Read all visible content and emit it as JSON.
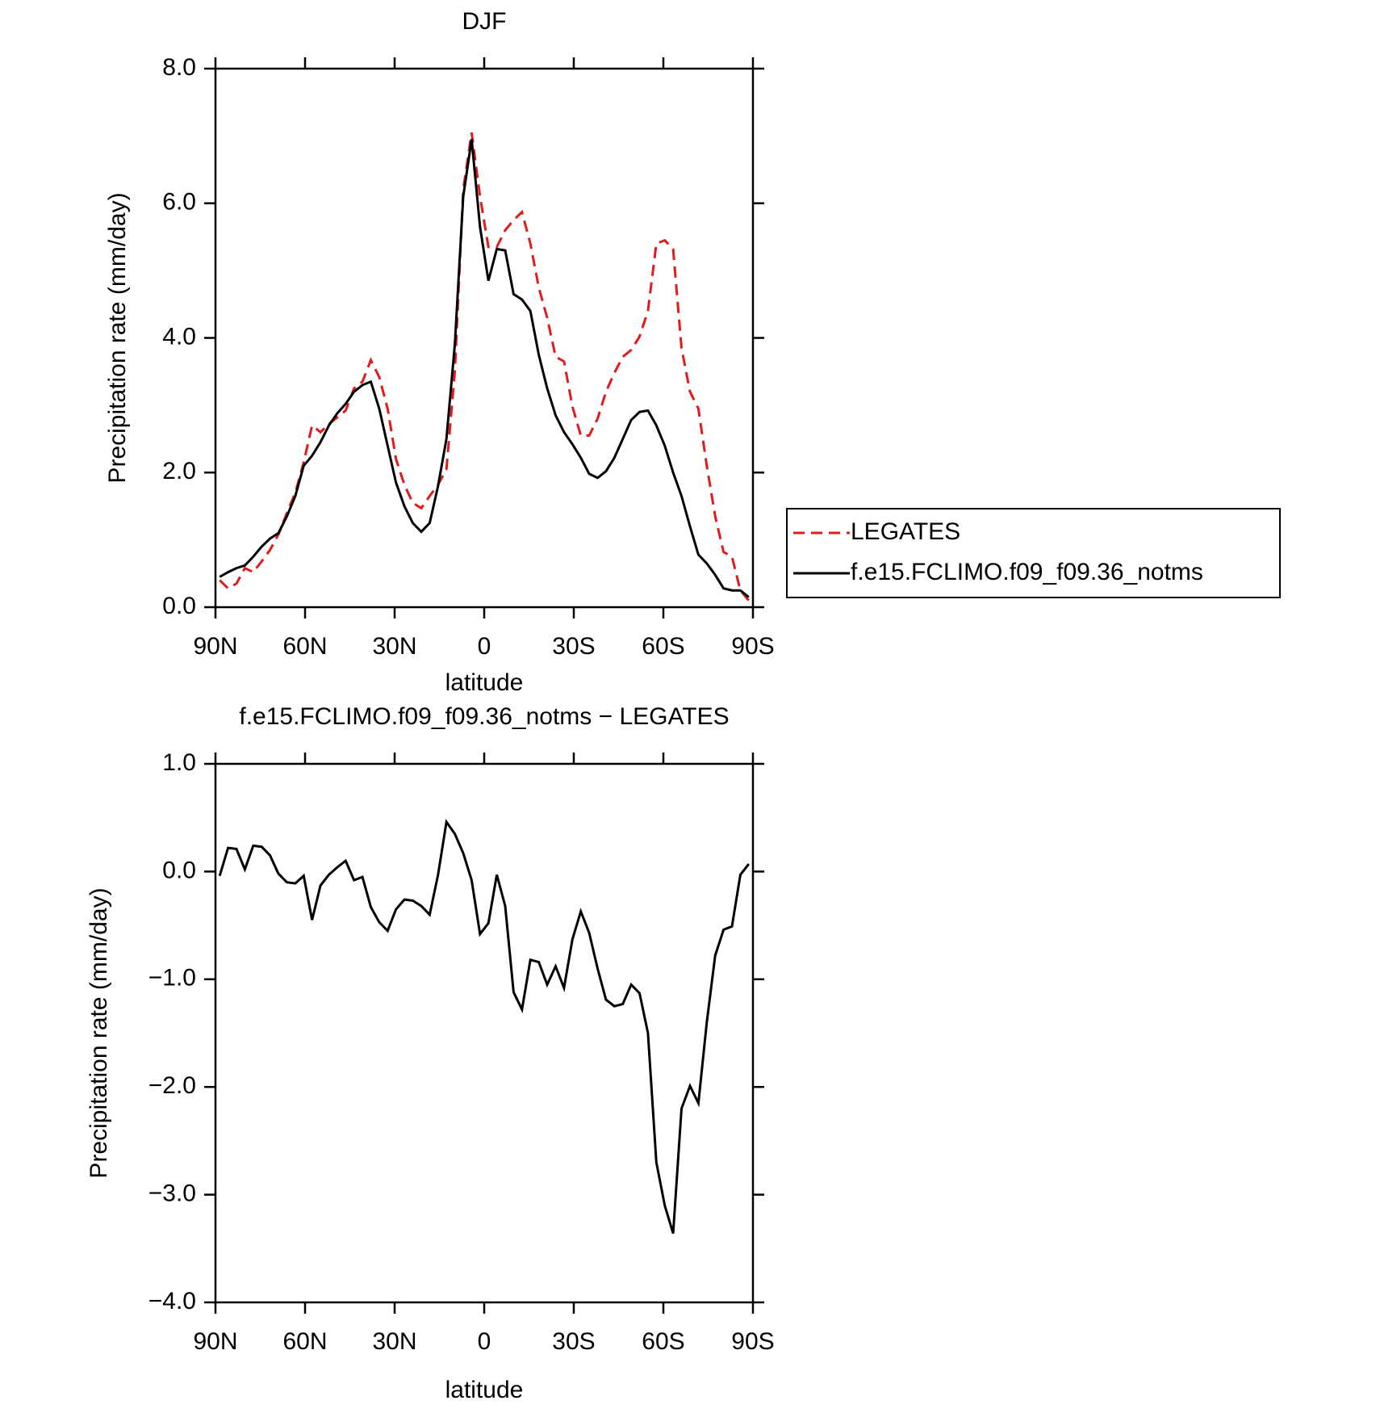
{
  "chart_data": [
    {
      "type": "line",
      "title": "DJF",
      "xlabel": "latitude",
      "ylabel": "Precipitation rate (mm/day)",
      "x": [
        88.59,
        85.78,
        82.97,
        80.16,
        77.34,
        74.53,
        71.72,
        68.91,
        66.09,
        63.28,
        60.47,
        57.66,
        54.84,
        52.03,
        49.22,
        46.41,
        43.59,
        40.78,
        37.97,
        35.16,
        32.34,
        29.53,
        26.72,
        23.91,
        21.09,
        18.28,
        15.47,
        12.66,
        9.84,
        7.03,
        4.22,
        1.41,
        -1.41,
        -4.22,
        -7.03,
        -9.84,
        -12.66,
        -15.47,
        -18.28,
        -21.09,
        -23.91,
        -26.72,
        -29.53,
        -32.34,
        -35.16,
        -37.97,
        -40.78,
        -43.59,
        -46.41,
        -49.22,
        -52.03,
        -54.84,
        -57.66,
        -60.47,
        -63.28,
        -66.09,
        -68.91,
        -71.72,
        -74.53,
        -77.34,
        -80.16,
        -82.97,
        -85.78,
        -88.59
      ],
      "xlim": [
        90,
        -90
      ],
      "xticks": [
        {
          "value": 90,
          "label": "90N"
        },
        {
          "value": 60,
          "label": "60N"
        },
        {
          "value": 30,
          "label": "30N"
        },
        0,
        {
          "value": -30,
          "label": "30S"
        },
        {
          "value": -60,
          "label": "60S"
        },
        {
          "value": -90,
          "label": "90S"
        }
      ],
      "ylim": [
        0,
        8
      ],
      "yticks": [
        {
          "value": 0,
          "label": "0.0"
        },
        {
          "value": 2,
          "label": "2.0"
        },
        {
          "value": 4,
          "label": "4.0"
        },
        {
          "value": 6,
          "label": "6.0"
        },
        {
          "value": 8,
          "label": "8.0"
        }
      ],
      "legend": "right",
      "series": [
        {
          "name": "LEGATES",
          "color": "#e31a1c",
          "line_style": "dashed",
          "values": [
            0.4,
            0.28,
            0.35,
            0.58,
            0.52,
            0.68,
            0.85,
            1.08,
            1.4,
            1.7,
            2.15,
            2.7,
            2.6,
            2.72,
            2.82,
            2.92,
            3.25,
            3.35,
            3.67,
            3.42,
            2.95,
            2.2,
            1.82,
            1.55,
            1.47,
            1.65,
            1.82,
            2.05,
            3.5,
            6.2,
            7.05,
            6.1,
            5.35,
            5.35,
            5.6,
            5.75,
            5.87,
            5.4,
            4.75,
            4.3,
            3.72,
            3.65,
            2.98,
            2.55,
            2.55,
            2.8,
            3.2,
            3.48,
            3.72,
            3.82,
            4.02,
            4.4,
            5.4,
            5.45,
            5.32,
            3.85,
            3.2,
            2.95,
            2.1,
            1.35,
            0.82,
            0.75,
            0.25,
            0.1
          ]
        },
        {
          "name": "f.e15.FCLIMO.f09_f09.36_notms",
          "color": "#000000",
          "line_style": "solid",
          "values": [
            0.45,
            0.52,
            0.58,
            0.62,
            0.75,
            0.9,
            1.02,
            1.1,
            1.35,
            1.65,
            2.1,
            2.25,
            2.45,
            2.7,
            2.88,
            3.02,
            3.2,
            3.3,
            3.35,
            2.95,
            2.4,
            1.85,
            1.5,
            1.25,
            1.12,
            1.25,
            1.8,
            2.5,
            3.9,
            6.1,
            6.95,
            5.65,
            4.85,
            5.32,
            5.3,
            4.65,
            4.57,
            4.4,
            3.75,
            3.25,
            2.85,
            2.6,
            2.42,
            2.22,
            1.98,
            1.92,
            2.02,
            2.22,
            2.5,
            2.78,
            2.9,
            2.92,
            2.7,
            2.4,
            2.0,
            1.65,
            1.2,
            0.78,
            0.65,
            0.48,
            0.28,
            0.25,
            0.25,
            0.15
          ]
        }
      ]
    },
    {
      "type": "line",
      "title": "f.e15.FCLIMO.f09_f09.36_notms − LEGATES",
      "xlabel": "latitude",
      "ylabel": "Precipitation rate (mm/day)",
      "x": [
        88.59,
        85.78,
        82.97,
        80.16,
        77.34,
        74.53,
        71.72,
        68.91,
        66.09,
        63.28,
        60.47,
        57.66,
        54.84,
        52.03,
        49.22,
        46.41,
        43.59,
        40.78,
        37.97,
        35.16,
        32.34,
        29.53,
        26.72,
        23.91,
        21.09,
        18.28,
        15.47,
        12.66,
        9.84,
        7.03,
        4.22,
        1.41,
        -1.41,
        -4.22,
        -7.03,
        -9.84,
        -12.66,
        -15.47,
        -18.28,
        -21.09,
        -23.91,
        -26.72,
        -29.53,
        -32.34,
        -35.16,
        -37.97,
        -40.78,
        -43.59,
        -46.41,
        -49.22,
        -52.03,
        -54.84,
        -57.66,
        -60.47,
        -63.28,
        -66.09,
        -68.91,
        -71.72,
        -74.53,
        -77.34,
        -80.16,
        -82.97,
        -85.78,
        -88.59
      ],
      "xlim": [
        90,
        -90
      ],
      "xticks": [
        {
          "value": 90,
          "label": "90N"
        },
        {
          "value": 60,
          "label": "60N"
        },
        {
          "value": 30,
          "label": "30N"
        },
        0,
        {
          "value": -30,
          "label": "30S"
        },
        {
          "value": -60,
          "label": "60S"
        },
        {
          "value": -90,
          "label": "90S"
        }
      ],
      "ylim": [
        -4,
        1
      ],
      "yticks": [
        {
          "value": -4,
          "label": "−4.0"
        },
        {
          "value": -3,
          "label": "−3.0"
        },
        {
          "value": -2,
          "label": "−2.0"
        },
        {
          "value": -1,
          "label": "−1.0"
        },
        {
          "value": 0,
          "label": "0.0"
        },
        {
          "value": 1,
          "label": "1.0"
        }
      ],
      "series": [
        {
          "color": "#000000",
          "line_style": "solid",
          "values": [
            -0.04,
            0.22,
            0.21,
            0.02,
            0.24,
            0.23,
            0.15,
            -0.02,
            -0.1,
            -0.11,
            -0.04,
            -0.45,
            -0.13,
            -0.03,
            0.04,
            0.1,
            -0.08,
            -0.05,
            -0.33,
            -0.47,
            -0.55,
            -0.35,
            -0.26,
            -0.27,
            -0.32,
            -0.4,
            -0.03,
            0.46,
            0.35,
            0.17,
            -0.08,
            -0.58,
            -0.48,
            -0.03,
            -0.32,
            -1.12,
            -1.28,
            -0.82,
            -0.84,
            -1.05,
            -0.88,
            -1.08,
            -0.63,
            -0.37,
            -0.57,
            -0.9,
            -1.19,
            -1.25,
            -1.23,
            -1.05,
            -1.13,
            -1.5,
            -2.7,
            -3.1,
            -3.36,
            -2.2,
            -1.99,
            -2.15,
            -1.4,
            -0.78,
            -0.54,
            -0.51,
            -0.03,
            0.07
          ]
        }
      ]
    }
  ]
}
